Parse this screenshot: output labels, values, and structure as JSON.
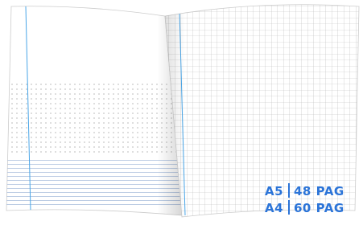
{
  "badges": [
    {
      "size": "A5",
      "pages": "48 PAG"
    },
    {
      "size": "A4",
      "pages": "60 PAG"
    }
  ]
}
